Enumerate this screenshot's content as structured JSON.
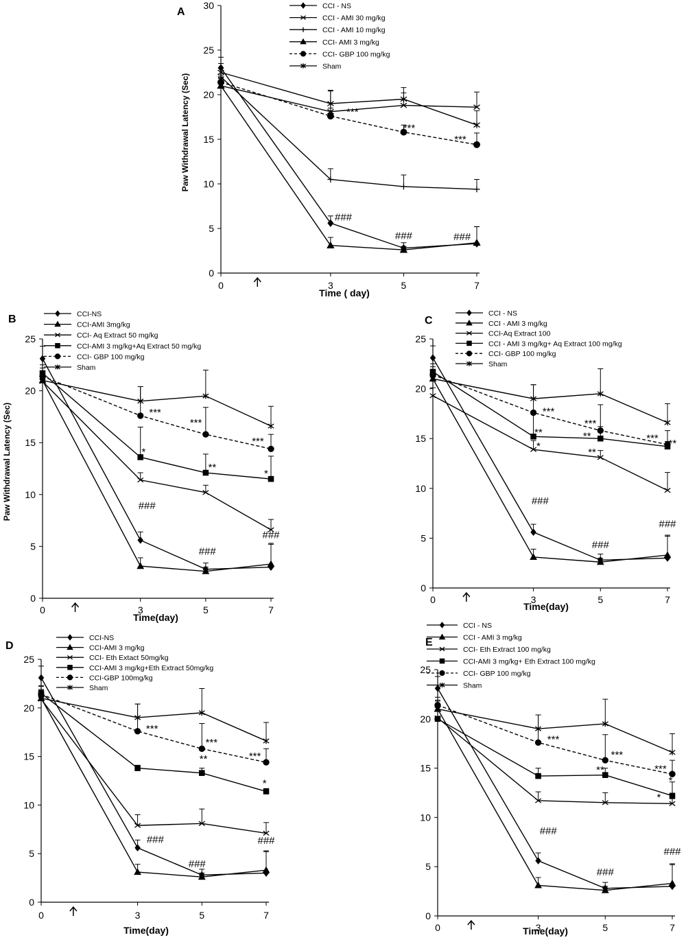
{
  "chart_data": [
    {
      "type": "line",
      "panel_label": "A",
      "xlabel": "Time ( day)",
      "ylabel": "Paw Withdrawal Latency (Sec)",
      "ylim": [
        0,
        30
      ],
      "yticks": [
        0,
        5,
        10,
        15,
        20,
        25,
        30
      ],
      "xticks": [
        0,
        3,
        5,
        7
      ],
      "arrow_at": 1,
      "legend_position": "top",
      "series": [
        {
          "name": "CCI - NS",
          "marker": "diamond",
          "dash": false,
          "x": [
            0,
            3,
            5,
            7
          ],
          "y": [
            23.0,
            5.6,
            2.8,
            3.3
          ],
          "err": [
            1.2,
            0.8,
            0.6,
            1.9
          ]
        },
        {
          "name": "CCI - AMI 30 mg/kg",
          "marker": "x",
          "dash": false,
          "x": [
            0,
            3,
            5,
            7
          ],
          "y": [
            21.0,
            18.1,
            18.8,
            18.6
          ],
          "err": [
            0.8,
            2.3,
            1.4,
            1.7
          ]
        },
        {
          "name": "CCI - AMI 10 mg/kg",
          "marker": "plus",
          "dash": false,
          "x": [
            0,
            3,
            5,
            7
          ],
          "y": [
            22.0,
            10.5,
            9.7,
            9.4
          ],
          "err": [
            1.0,
            1.2,
            1.3,
            1.1
          ]
        },
        {
          "name": "CCI- AMI 3 mg/kg",
          "marker": "triangle",
          "dash": false,
          "x": [
            0,
            3,
            5,
            7
          ],
          "y": [
            21.0,
            3.1,
            2.6,
            3.4
          ],
          "err": [
            0.9,
            0.9,
            0.4,
            1.8
          ]
        },
        {
          "name": "CCI- GBP 100 mg/kg",
          "marker": "circle",
          "dash": true,
          "x": [
            0,
            3,
            5,
            7
          ],
          "y": [
            21.4,
            17.6,
            15.8,
            14.4
          ],
          "err": [
            0.8,
            0.9,
            0.8,
            1.3
          ]
        },
        {
          "name": "Sham",
          "marker": "star",
          "dash": false,
          "x": [
            0,
            3,
            5,
            7
          ],
          "y": [
            22.5,
            19.0,
            19.5,
            16.6
          ],
          "err": [
            1.0,
            1.5,
            1.3,
            1.6
          ]
        }
      ],
      "annotations": [
        {
          "text": "***",
          "x": 3.6,
          "y": 17.7
        },
        {
          "text": "***",
          "x": 5.15,
          "y": 15.9
        },
        {
          "text": "***",
          "x": 6.55,
          "y": 14.6
        },
        {
          "text": "###",
          "x": 3.35,
          "y": 5.9
        },
        {
          "text": "###",
          "x": 5.0,
          "y": 3.8
        },
        {
          "text": "###",
          "x": 6.6,
          "y": 3.7
        }
      ]
    },
    {
      "type": "line",
      "panel_label": "B",
      "xlabel": "Time(day)",
      "ylabel": "Paw Withdrawal Latency (Sec)",
      "ylim": [
        0,
        25
      ],
      "yticks": [
        0,
        5,
        10,
        15,
        20,
        25
      ],
      "xticks": [
        0,
        3,
        5,
        7
      ],
      "arrow_at": 1,
      "legend_position": "top",
      "series": [
        {
          "name": "CCI-NS",
          "marker": "diamond",
          "dash": false,
          "x": [
            0,
            3,
            5,
            7
          ],
          "y": [
            23.1,
            5.6,
            2.8,
            3.0
          ],
          "err": [
            1.2,
            0.8,
            0.6,
            2.3
          ]
        },
        {
          "name": "CCI-AMI 3mg/kg",
          "marker": "triangle",
          "dash": false,
          "x": [
            0,
            3,
            5,
            7
          ],
          "y": [
            21.0,
            3.1,
            2.6,
            3.3
          ],
          "err": [
            0.9,
            0.8,
            0.4,
            1.9
          ]
        },
        {
          "name": "CCI- Aq  Extract 50 mg/kg",
          "marker": "x",
          "dash": false,
          "x": [
            0,
            3,
            5,
            7
          ],
          "y": [
            20.9,
            11.4,
            10.2,
            6.6
          ],
          "err": [
            0.8,
            0.7,
            0.7,
            1.0
          ]
        },
        {
          "name": "CCI-AMI 3 mg/kg+Aq Extract 50 mg/kg",
          "marker": "square",
          "dash": false,
          "x": [
            0,
            3,
            5,
            7
          ],
          "y": [
            21.7,
            13.6,
            12.1,
            11.5
          ],
          "err": [
            0.8,
            2.9,
            1.8,
            2.2
          ]
        },
        {
          "name": "CCI- GBP 100 mg/kg",
          "marker": "circle",
          "dash": true,
          "x": [
            0,
            3,
            5,
            7
          ],
          "y": [
            21.4,
            17.6,
            15.8,
            14.4
          ],
          "err": [
            0.8,
            2.8,
            2.6,
            1.4
          ]
        },
        {
          "name": "Sham",
          "marker": "star",
          "dash": false,
          "x": [
            0,
            3,
            5,
            7
          ],
          "y": [
            21.0,
            19.0,
            19.5,
            16.6
          ],
          "err": [
            0.8,
            1.4,
            2.5,
            1.9
          ]
        }
      ],
      "annotations": [
        {
          "text": "***",
          "x": 3.45,
          "y": 17.6
        },
        {
          "text": "***",
          "x": 4.7,
          "y": 16.6
        },
        {
          "text": "***",
          "x": 6.6,
          "y": 14.8
        },
        {
          "text": "*",
          "x": 3.1,
          "y": 13.8
        },
        {
          "text": "**",
          "x": 5.2,
          "y": 12.3
        },
        {
          "text": "*",
          "x": 6.85,
          "y": 11.7
        },
        {
          "text": "###",
          "x": 3.2,
          "y": 8.6
        },
        {
          "text": "###",
          "x": 5.05,
          "y": 4.2
        },
        {
          "text": "###",
          "x": 7.0,
          "y": 5.8
        }
      ]
    },
    {
      "type": "line",
      "panel_label": "C",
      "xlabel": "Time(day)",
      "ylabel": "",
      "ylim": [
        0,
        25
      ],
      "yticks": [
        0,
        5,
        10,
        15,
        20,
        25
      ],
      "xticks": [
        0,
        3,
        5,
        7
      ],
      "arrow_at": 1,
      "legend_position": "top",
      "series": [
        {
          "name": "CCI - NS",
          "marker": "diamond",
          "dash": false,
          "x": [
            0,
            3,
            5,
            7
          ],
          "y": [
            23.1,
            5.6,
            2.8,
            3.0
          ],
          "err": [
            1.2,
            0.8,
            0.6,
            2.3
          ]
        },
        {
          "name": "CCI - AMI 3 mg/kg",
          "marker": "triangle",
          "dash": false,
          "x": [
            0,
            3,
            5,
            7
          ],
          "y": [
            21.0,
            3.1,
            2.6,
            3.3
          ],
          "err": [
            0.9,
            0.8,
            0.4,
            1.9
          ]
        },
        {
          "name": "CCI-Aq  Extract 100",
          "marker": "x",
          "dash": false,
          "x": [
            0,
            3,
            5,
            7
          ],
          "y": [
            19.3,
            13.9,
            13.1,
            9.8
          ],
          "err": [
            0.8,
            0.9,
            0.7,
            1.8
          ]
        },
        {
          "name": "CCI - AMI 3 mg/kg+ Aq  Extract 100 mg/kg",
          "marker": "square",
          "dash": false,
          "x": [
            0,
            3,
            5,
            7
          ],
          "y": [
            21.7,
            15.2,
            15.0,
            14.2
          ],
          "err": [
            0.8,
            2.3,
            1.2,
            0.5
          ]
        },
        {
          "name": "CCI- GBP 100 mg/kg",
          "marker": "circle",
          "dash": true,
          "x": [
            0,
            3,
            5,
            7
          ],
          "y": [
            21.4,
            17.6,
            15.8,
            14.4
          ],
          "err": [
            0.8,
            2.8,
            2.6,
            1.4
          ]
        },
        {
          "name": "Sham",
          "marker": "star",
          "dash": false,
          "x": [
            0,
            3,
            5,
            7
          ],
          "y": [
            21.0,
            19.0,
            19.5,
            16.6
          ],
          "err": [
            0.8,
            1.4,
            2.5,
            1.9
          ]
        }
      ],
      "annotations": [
        {
          "text": "***",
          "x": 3.45,
          "y": 17.4
        },
        {
          "text": "***",
          "x": 4.7,
          "y": 16.2
        },
        {
          "text": "***",
          "x": 6.55,
          "y": 14.7
        },
        {
          "text": "**",
          "x": 7.15,
          "y": 14.2
        },
        {
          "text": "**",
          "x": 3.15,
          "y": 15.3
        },
        {
          "text": "**",
          "x": 4.6,
          "y": 14.9
        },
        {
          "text": "*",
          "x": 3.15,
          "y": 13.9
        },
        {
          "text": "**",
          "x": 4.75,
          "y": 13.3
        },
        {
          "text": "###",
          "x": 3.2,
          "y": 8.4
        },
        {
          "text": "###",
          "x": 5.0,
          "y": 4.0
        },
        {
          "text": "###",
          "x": 7.0,
          "y": 6.1
        }
      ]
    },
    {
      "type": "line",
      "panel_label": "D",
      "xlabel": "Time(day)",
      "ylabel": "",
      "ylim": [
        0,
        25
      ],
      "yticks": [
        0,
        5,
        10,
        15,
        20,
        25
      ],
      "xticks": [
        0,
        3,
        5,
        7
      ],
      "arrow_at": 1,
      "legend_position": "top",
      "series": [
        {
          "name": "CCI-NS",
          "marker": "diamond",
          "dash": false,
          "x": [
            0,
            3,
            5,
            7
          ],
          "y": [
            23.1,
            5.6,
            2.8,
            3.0
          ],
          "err": [
            1.2,
            0.8,
            0.6,
            2.3
          ]
        },
        {
          "name": "CCI-AMI 3 mg/kg",
          "marker": "triangle",
          "dash": false,
          "x": [
            0,
            3,
            5,
            7
          ],
          "y": [
            21.0,
            3.1,
            2.6,
            3.3
          ],
          "err": [
            0.9,
            0.8,
            0.4,
            1.9
          ]
        },
        {
          "name": "CCI- Eth Extact 50mg/kg",
          "marker": "x",
          "dash": false,
          "x": [
            0,
            3,
            5,
            7
          ],
          "y": [
            20.9,
            7.9,
            8.1,
            7.1
          ],
          "err": [
            0.8,
            1.1,
            1.5,
            1.1
          ]
        },
        {
          "name": "CCI-AMI 3 mg/kg+Eth Extract 50mg/kg",
          "marker": "square",
          "dash": false,
          "x": [
            0,
            3,
            5,
            7
          ],
          "y": [
            21.5,
            13.8,
            13.3,
            11.4
          ],
          "err": [
            0.8,
            0.3,
            0.5,
            0.3
          ]
        },
        {
          "name": "CCI-GBP 100mg/kg",
          "marker": "circle",
          "dash": true,
          "x": [
            0,
            3,
            5,
            7
          ],
          "y": [
            21.4,
            17.6,
            15.8,
            14.4
          ],
          "err": [
            0.8,
            2.8,
            2.6,
            1.4
          ]
        },
        {
          "name": "Sham",
          "marker": "star",
          "dash": false,
          "x": [
            0,
            3,
            5,
            7
          ],
          "y": [
            21.0,
            19.0,
            19.5,
            16.6
          ],
          "err": [
            0.8,
            1.4,
            2.5,
            1.9
          ]
        }
      ],
      "annotations": [
        {
          "text": "***",
          "x": 3.45,
          "y": 17.5
        },
        {
          "text": "***",
          "x": 5.3,
          "y": 16.1
        },
        {
          "text": "***",
          "x": 6.65,
          "y": 14.7
        },
        {
          "text": "**",
          "x": 5.05,
          "y": 14.4
        },
        {
          "text": "*",
          "x": 6.95,
          "y": 11.9
        },
        {
          "text": "###",
          "x": 3.55,
          "y": 6.1
        },
        {
          "text": "###",
          "x": 4.85,
          "y": 3.6
        },
        {
          "text": "###",
          "x": 7.0,
          "y": 6.0
        }
      ]
    },
    {
      "type": "line",
      "panel_label": "E",
      "xlabel": "Time(day)",
      "ylabel": "",
      "ylim": [
        0,
        25
      ],
      "yticks": [
        0,
        5,
        10,
        15,
        20,
        25
      ],
      "xticks": [
        0,
        3,
        5,
        7
      ],
      "arrow_at": 1,
      "legend_position": "top",
      "series": [
        {
          "name": "CCI - NS",
          "marker": "diamond",
          "dash": false,
          "x": [
            0,
            3,
            5,
            7
          ],
          "y": [
            23.1,
            5.6,
            2.8,
            3.0
          ],
          "err": [
            1.2,
            0.8,
            0.6,
            2.3
          ]
        },
        {
          "name": "CCI - AMI 3 mg/kg",
          "marker": "triangle",
          "dash": false,
          "x": [
            0,
            3,
            5,
            7
          ],
          "y": [
            21.0,
            3.1,
            2.6,
            3.3
          ],
          "err": [
            0.9,
            0.8,
            0.4,
            1.9
          ]
        },
        {
          "name": "CCI- Eth Extract 100 mg/kg",
          "marker": "x",
          "dash": false,
          "x": [
            0,
            3,
            5,
            7
          ],
          "y": [
            20.1,
            11.7,
            11.5,
            11.4
          ],
          "err": [
            0.8,
            0.9,
            1.0,
            0.5
          ]
        },
        {
          "name": "CCI-AMI 3 mg/kg+ Eth Extract 100 mg/kg",
          "marker": "square",
          "dash": false,
          "x": [
            0,
            3,
            5,
            7
          ],
          "y": [
            20.0,
            14.2,
            14.3,
            12.2
          ],
          "err": [
            0.8,
            0.8,
            0.7,
            1.4
          ]
        },
        {
          "name": "CCI- GBP 100 mg/kg",
          "marker": "circle",
          "dash": true,
          "x": [
            0,
            3,
            5,
            7
          ],
          "y": [
            21.4,
            17.6,
            15.8,
            14.4
          ],
          "err": [
            0.8,
            2.8,
            2.6,
            1.4
          ]
        },
        {
          "name": "Sham",
          "marker": "star",
          "dash": false,
          "x": [
            0,
            3,
            5,
            7
          ],
          "y": [
            21.0,
            19.0,
            19.5,
            16.6
          ],
          "err": [
            0.8,
            1.4,
            2.5,
            1.9
          ]
        }
      ],
      "annotations": [
        {
          "text": "***",
          "x": 3.45,
          "y": 17.6
        },
        {
          "text": "***",
          "x": 5.35,
          "y": 16.0
        },
        {
          "text": "***",
          "x": 6.65,
          "y": 14.6
        },
        {
          "text": "**",
          "x": 4.85,
          "y": 14.5
        },
        {
          "text": "*",
          "x": 6.95,
          "y": 13.4
        },
        {
          "text": "*",
          "x": 6.6,
          "y": 11.7
        },
        {
          "text": "###",
          "x": 3.3,
          "y": 8.3
        },
        {
          "text": "###",
          "x": 5.0,
          "y": 4.1
        },
        {
          "text": "###",
          "x": 7.0,
          "y": 6.2
        }
      ]
    }
  ]
}
